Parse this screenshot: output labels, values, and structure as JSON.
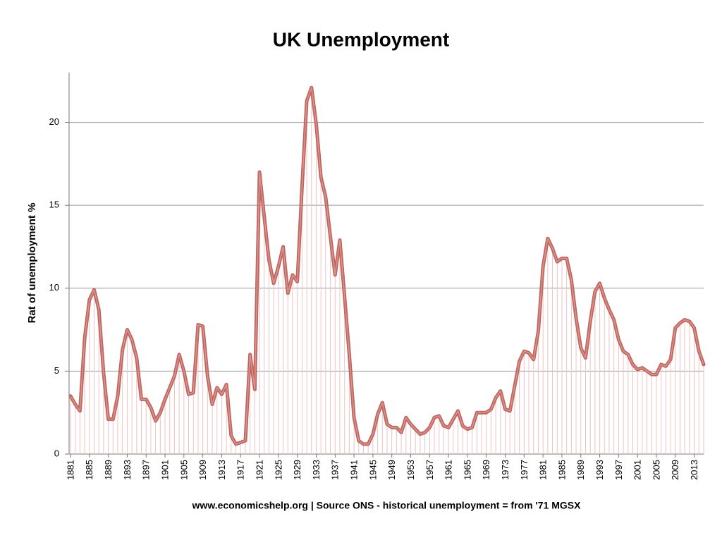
{
  "chart_data": {
    "type": "line",
    "title": "UK Unemployment",
    "y_label": "Rat of unemployment %",
    "x_label": "www.economicshelp.org | Source ONS - historical unemployment = from '71 MGSX",
    "categories": [
      "1881",
      null,
      null,
      null,
      "1885",
      null,
      null,
      null,
      "1889",
      null,
      null,
      null,
      "1893",
      null,
      null,
      null,
      "1897",
      null,
      null,
      null,
      "1901",
      null,
      null,
      null,
      "1905",
      null,
      null,
      null,
      "1909",
      null,
      null,
      null,
      "1913",
      null,
      null,
      null,
      "1917",
      null,
      null,
      null,
      "1921",
      null,
      null,
      null,
      "1925",
      null,
      null,
      null,
      "1929",
      null,
      null,
      null,
      "1933",
      null,
      null,
      null,
      "1937",
      null,
      null,
      null,
      "1941",
      null,
      null,
      null,
      "1945",
      null,
      null,
      null,
      "1949",
      null,
      null,
      null,
      "1953",
      null,
      null,
      null,
      "1957",
      null,
      null,
      null,
      "1961",
      null,
      null,
      null,
      "1965",
      null,
      null,
      null,
      "1969",
      null,
      null,
      null,
      "1973",
      null,
      null,
      null,
      "1977",
      null,
      null,
      null,
      "1981",
      null,
      null,
      null,
      "1985",
      null,
      null,
      null,
      "1989",
      null,
      null,
      null,
      "1993",
      null,
      null,
      null,
      "1997",
      null,
      null,
      null,
      "2001",
      null,
      null,
      null,
      "2005",
      null,
      null,
      null,
      "2009",
      null,
      null,
      null,
      "2013",
      null,
      null
    ],
    "series": [
      {
        "color": "#c0655f",
        "drop_color": "#f0c2c2",
        "values": [
          3.5,
          3.0,
          2.6,
          7.0,
          9.3,
          9.9,
          8.7,
          4.9,
          2.1,
          2.1,
          3.5,
          6.3,
          7.5,
          6.9,
          5.8,
          3.3,
          3.3,
          2.8,
          2.0,
          2.5,
          3.3,
          4.0,
          4.7,
          6.0,
          5.0,
          3.6,
          3.7,
          7.8,
          7.7,
          4.7,
          3.0,
          4.0,
          3.6,
          4.2,
          1.1,
          0.6,
          0.7,
          0.8,
          6.0,
          3.9,
          17.0,
          14.3,
          11.7,
          10.3,
          11.3,
          12.5,
          9.7,
          10.8,
          10.4,
          16.1,
          21.3,
          22.1,
          19.9,
          16.7,
          15.5,
          13.1,
          10.8,
          12.9,
          9.5,
          6.0,
          2.2,
          0.8,
          0.6,
          0.6,
          1.2,
          2.4,
          3.1,
          1.8,
          1.6,
          1.6,
          1.3,
          2.2,
          1.8,
          1.5,
          1.2,
          1.3,
          1.6,
          2.2,
          2.3,
          1.7,
          1.6,
          2.1,
          2.6,
          1.7,
          1.5,
          1.6,
          2.5,
          2.5,
          2.5,
          2.7,
          3.4,
          3.8,
          2.7,
          2.6,
          4.1,
          5.6,
          6.2,
          6.1,
          5.7,
          7.4,
          11.3,
          13.0,
          12.4,
          11.6,
          11.8,
          11.8,
          10.5,
          8.2,
          6.4,
          5.8,
          8.0,
          9.8,
          10.3,
          9.4,
          8.7,
          8.1,
          6.9,
          6.2,
          6.0,
          5.4,
          5.1,
          5.2,
          5.0,
          4.8,
          4.8,
          5.4,
          5.3,
          5.7,
          7.6,
          7.9,
          8.1,
          8.0,
          7.6,
          6.2,
          5.4
        ]
      }
    ],
    "ylim": [
      0,
      23
    ],
    "yticks": [
      0,
      5,
      10,
      15,
      20
    ],
    "grid": true
  }
}
